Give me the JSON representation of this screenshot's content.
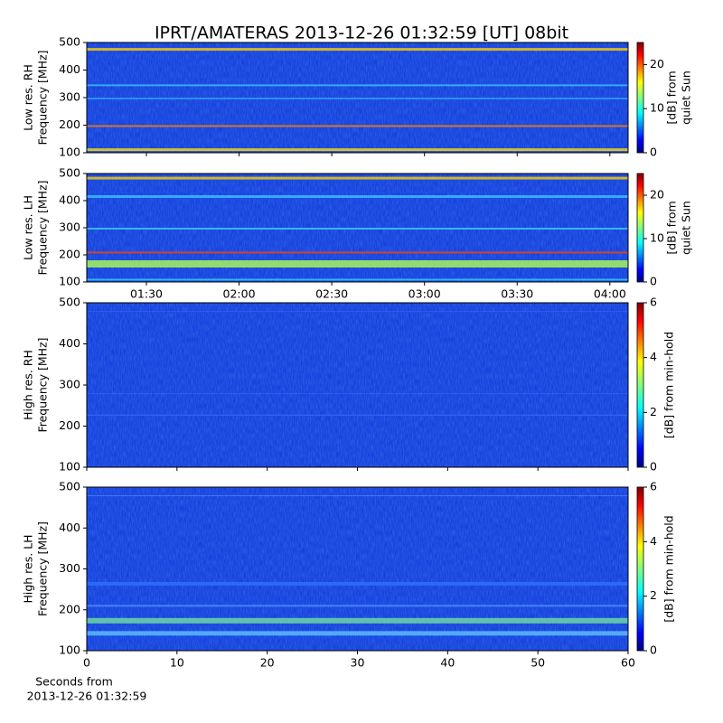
{
  "title": "IPRT/AMATERAS 2013-12-26 01:32:59 [UT]   08bit",
  "chart_data": [
    {
      "type": "spectrogram",
      "ylabel": [
        "Low res. RH",
        "Frequency [MHz]"
      ],
      "ylim": [
        100,
        500
      ],
      "yticks": [
        100,
        200,
        300,
        400,
        500
      ],
      "xlim": [
        70.7,
        245.9
      ],
      "xticks": [
        90,
        120,
        150,
        180,
        210,
        240
      ],
      "colorbar": {
        "label": [
          "[dB] from",
          "quiet Sun"
        ],
        "lim": [
          0,
          25
        ],
        "ticks": [
          0,
          10,
          20
        ],
        "colormap": "jet"
      }
    },
    {
      "type": "spectrogram",
      "ylabel": [
        "Low res. LH",
        "Frequency [MHz]"
      ],
      "ylim": [
        100,
        500
      ],
      "yticks": [
        100,
        200,
        300,
        400,
        500
      ],
      "xlim": [
        70.7,
        245.9
      ],
      "xticks": [
        {
          "value": 90,
          "label": "01:30"
        },
        {
          "value": 120,
          "label": "02:00"
        },
        {
          "value": 150,
          "label": "02:30"
        },
        {
          "value": 180,
          "label": "03:00"
        },
        {
          "value": 210,
          "label": "03:30"
        },
        {
          "value": 240,
          "label": "04:00"
        }
      ],
      "colorbar": {
        "label": [
          "[dB] from",
          "quiet Sun"
        ],
        "lim": [
          0,
          25
        ],
        "ticks": [
          0,
          10,
          20
        ],
        "colormap": "jet"
      }
    },
    {
      "type": "spectrogram",
      "ylabel": [
        "High res. RH",
        "Frequency [MHz]"
      ],
      "ylim": [
        100,
        500
      ],
      "yticks": [
        100,
        200,
        300,
        400,
        500
      ],
      "xlim": [
        0,
        60
      ],
      "xticks": [
        0,
        10,
        20,
        30,
        40,
        50,
        60
      ],
      "colorbar": {
        "label": [
          "[dB] from min-hold"
        ],
        "lim": [
          0,
          6
        ],
        "ticks": [
          0,
          2,
          4,
          6
        ],
        "colormap": "jet"
      }
    },
    {
      "type": "spectrogram",
      "ylabel": [
        "High res. LH",
        "Frequency [MHz]"
      ],
      "ylim": [
        100,
        500
      ],
      "yticks": [
        100,
        200,
        300,
        400,
        500
      ],
      "xlim": [
        0,
        60
      ],
      "xticks": [
        0,
        10,
        20,
        30,
        40,
        50,
        60
      ],
      "xlabel": [
        "Seconds from",
        "2013-12-26 01:32:59"
      ],
      "colorbar": {
        "label": [
          "[dB] from min-hold"
        ],
        "lim": [
          0,
          6
        ],
        "ticks": [
          0,
          2,
          4,
          6
        ],
        "colormap": "jet"
      }
    }
  ]
}
